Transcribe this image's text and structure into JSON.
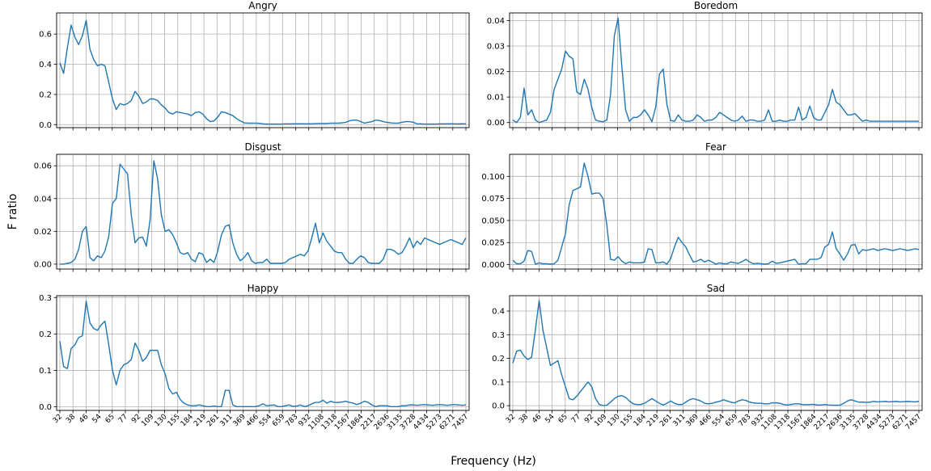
{
  "figure": {
    "ylabel": "F ratio",
    "xlabel": "Frequency (Hz)",
    "line_color": "#1f77b4",
    "grid_color": "#b0b0b0",
    "x_tick_labels": [
      "32",
      "38",
      "46",
      "54",
      "65",
      "77",
      "92",
      "109",
      "130",
      "155",
      "184",
      "219",
      "261",
      "311",
      "369",
      "466",
      "554",
      "659",
      "783",
      "932",
      "1108",
      "1318",
      "1567",
      "1864",
      "2217",
      "2636",
      "3135",
      "3728",
      "4434",
      "5273",
      "6271",
      "7457"
    ]
  },
  "chart_data": [
    {
      "type": "line",
      "title": "Angry",
      "ylim": [
        -0.02,
        0.74
      ],
      "yticks": [
        0.0,
        0.2,
        0.4,
        0.6
      ],
      "ytick_labels": [
        "0.0",
        "0.2",
        "0.4",
        "0.6"
      ],
      "grid": true,
      "values": [
        0.41,
        0.34,
        0.51,
        0.66,
        0.58,
        0.53,
        0.59,
        0.69,
        0.5,
        0.43,
        0.39,
        0.4,
        0.39,
        0.28,
        0.17,
        0.1,
        0.14,
        0.13,
        0.14,
        0.16,
        0.22,
        0.19,
        0.14,
        0.15,
        0.17,
        0.17,
        0.16,
        0.13,
        0.11,
        0.08,
        0.07,
        0.085,
        0.08,
        0.075,
        0.07,
        0.06,
        0.08,
        0.085,
        0.07,
        0.04,
        0.02,
        0.025,
        0.05,
        0.085,
        0.08,
        0.07,
        0.06,
        0.04,
        0.025,
        0.012,
        0.01,
        0.01,
        0.01,
        0.009,
        0.005,
        0.004,
        0.004,
        0.004,
        0.004,
        0.004,
        0.005,
        0.005,
        0.006,
        0.006,
        0.006,
        0.006,
        0.006,
        0.006,
        0.007,
        0.008,
        0.008,
        0.008,
        0.01,
        0.01,
        0.01,
        0.012,
        0.015,
        0.025,
        0.03,
        0.03,
        0.02,
        0.01,
        0.015,
        0.02,
        0.03,
        0.028,
        0.02,
        0.015,
        0.012,
        0.01,
        0.01,
        0.015,
        0.02,
        0.02,
        0.015,
        0.006,
        0.005,
        0.004,
        0.004,
        0.004,
        0.004,
        0.005,
        0.005,
        0.006,
        0.006,
        0.005,
        0.005,
        0.006,
        0.005
      ]
    },
    {
      "type": "line",
      "title": "Boredom",
      "ylim": [
        -0.002,
        0.043
      ],
      "yticks": [
        0.0,
        0.01,
        0.02,
        0.03,
        0.04
      ],
      "ytick_labels": [
        "0.00",
        "0.01",
        "0.02",
        "0.03",
        "0.04"
      ],
      "grid": true,
      "values": [
        0.001,
        0.0,
        0.002,
        0.0135,
        0.003,
        0.005,
        0.001,
        0.0,
        0.0005,
        0.001,
        0.004,
        0.013,
        0.017,
        0.021,
        0.028,
        0.026,
        0.025,
        0.012,
        0.011,
        0.017,
        0.013,
        0.006,
        0.001,
        0.0005,
        0.0003,
        0.001,
        0.011,
        0.034,
        0.041,
        0.022,
        0.005,
        0.0005,
        0.002,
        0.002,
        0.003,
        0.005,
        0.003,
        0.0003,
        0.006,
        0.019,
        0.021,
        0.007,
        0.0008,
        0.0005,
        0.003,
        0.001,
        0.0005,
        0.0005,
        0.001,
        0.003,
        0.002,
        0.0005,
        0.001,
        0.001,
        0.002,
        0.004,
        0.003,
        0.002,
        0.001,
        0.0005,
        0.001,
        0.0025,
        0.0005,
        0.001,
        0.001,
        0.0005,
        0.0005,
        0.001,
        0.005,
        0.0005,
        0.0005,
        0.001,
        0.0005,
        0.0005,
        0.001,
        0.001,
        0.006,
        0.001,
        0.002,
        0.0065,
        0.002,
        0.001,
        0.001,
        0.004,
        0.007,
        0.013,
        0.008,
        0.007,
        0.005,
        0.003,
        0.003,
        0.0035,
        0.002,
        0.0005,
        0.001,
        0.0005,
        0.0005,
        0.0005,
        0.0005,
        0.0005,
        0.0005,
        0.0005,
        0.0005,
        0.0005,
        0.0005,
        0.0005,
        0.0005,
        0.0005,
        0.0005
      ]
    },
    {
      "type": "line",
      "title": "Disgust",
      "ylim": [
        -0.003,
        0.067
      ],
      "yticks": [
        0.0,
        0.02,
        0.04,
        0.06
      ],
      "ytick_labels": [
        "0.00",
        "0.02",
        "0.04",
        "0.06"
      ],
      "grid": true,
      "values": [
        0.0,
        0.0,
        0.0005,
        0.001,
        0.003,
        0.009,
        0.02,
        0.023,
        0.004,
        0.002,
        0.005,
        0.004,
        0.008,
        0.017,
        0.037,
        0.04,
        0.061,
        0.058,
        0.055,
        0.03,
        0.013,
        0.016,
        0.0165,
        0.011,
        0.027,
        0.063,
        0.052,
        0.03,
        0.02,
        0.021,
        0.018,
        0.013,
        0.007,
        0.006,
        0.007,
        0.003,
        0.0015,
        0.007,
        0.006,
        0.001,
        0.003,
        0.001,
        0.008,
        0.018,
        0.023,
        0.024,
        0.013,
        0.006,
        0.002,
        0.004,
        0.007,
        0.002,
        0.0005,
        0.001,
        0.001,
        0.003,
        0.0005,
        0.0005,
        0.0005,
        0.0005,
        0.001,
        0.003,
        0.004,
        0.005,
        0.006,
        0.005,
        0.008,
        0.016,
        0.025,
        0.013,
        0.019,
        0.014,
        0.011,
        0.008,
        0.007,
        0.007,
        0.003,
        0.0005,
        0.0005,
        0.003,
        0.005,
        0.004,
        0.001,
        0.0005,
        0.0005,
        0.0005,
        0.003,
        0.009,
        0.009,
        0.008,
        0.006,
        0.007,
        0.011,
        0.016,
        0.01,
        0.014,
        0.012,
        0.016,
        0.015,
        0.014,
        0.013,
        0.012,
        0.013,
        0.014,
        0.015,
        0.014,
        0.013,
        0.012,
        0.016
      ]
    },
    {
      "type": "line",
      "title": "Fear",
      "ylim": [
        -0.005,
        0.125
      ],
      "yticks": [
        0.0,
        0.025,
        0.05,
        0.075,
        0.1
      ],
      "ytick_labels": [
        "0.000",
        "0.025",
        "0.050",
        "0.075",
        "0.100"
      ],
      "grid": true,
      "values": [
        0.005,
        0.001,
        0.001,
        0.004,
        0.016,
        0.015,
        0.0005,
        0.002,
        0.001,
        0.001,
        0.0005,
        0.001,
        0.005,
        0.02,
        0.035,
        0.068,
        0.084,
        0.086,
        0.088,
        0.115,
        0.1,
        0.08,
        0.081,
        0.081,
        0.075,
        0.045,
        0.006,
        0.005,
        0.009,
        0.004,
        0.001,
        0.003,
        0.002,
        0.002,
        0.002,
        0.003,
        0.018,
        0.017,
        0.002,
        0.002,
        0.003,
        0.0005,
        0.007,
        0.02,
        0.031,
        0.025,
        0.02,
        0.011,
        0.003,
        0.004,
        0.006,
        0.003,
        0.005,
        0.003,
        0.0005,
        0.002,
        0.001,
        0.001,
        0.003,
        0.002,
        0.0015,
        0.0035,
        0.006,
        0.003,
        0.001,
        0.0015,
        0.001,
        0.0005,
        0.001,
        0.004,
        0.0015,
        0.002,
        0.003,
        0.004,
        0.005,
        0.006,
        0.0005,
        0.001,
        0.001,
        0.006,
        0.006,
        0.006,
        0.008,
        0.02,
        0.023,
        0.037,
        0.018,
        0.012,
        0.005,
        0.012,
        0.022,
        0.023,
        0.012,
        0.017,
        0.016,
        0.017,
        0.018,
        0.016,
        0.017,
        0.018,
        0.017,
        0.016,
        0.017,
        0.018,
        0.017,
        0.016,
        0.017,
        0.018,
        0.017
      ]
    },
    {
      "type": "line",
      "title": "Happy",
      "ylim": [
        -0.01,
        0.305
      ],
      "yticks": [
        0.0,
        0.1,
        0.2,
        0.3
      ],
      "ytick_labels": [
        "0.0",
        "0.1",
        "0.2",
        "0.3"
      ],
      "grid": true,
      "values": [
        0.18,
        0.11,
        0.105,
        0.16,
        0.17,
        0.19,
        0.195,
        0.29,
        0.23,
        0.215,
        0.21,
        0.225,
        0.235,
        0.17,
        0.1,
        0.06,
        0.1,
        0.115,
        0.12,
        0.13,
        0.175,
        0.155,
        0.125,
        0.135,
        0.155,
        0.155,
        0.155,
        0.115,
        0.09,
        0.05,
        0.035,
        0.04,
        0.02,
        0.01,
        0.005,
        0.003,
        0.003,
        0.005,
        0.003,
        0.0005,
        0.0005,
        0.002,
        0.0005,
        0.0005,
        0.045,
        0.045,
        0.005,
        0.0005,
        0.0005,
        0.0005,
        0.0005,
        0.0005,
        0.0005,
        0.003,
        0.008,
        0.003,
        0.004,
        0.005,
        0.0005,
        0.0005,
        0.003,
        0.005,
        0.001,
        0.002,
        0.005,
        0.0005,
        0.003,
        0.008,
        0.012,
        0.012,
        0.018,
        0.01,
        0.015,
        0.012,
        0.012,
        0.013,
        0.015,
        0.012,
        0.01,
        0.006,
        0.01,
        0.015,
        0.012,
        0.005,
        0.0005,
        0.003,
        0.003,
        0.003,
        0.0005,
        0.0005,
        0.0005,
        0.003,
        0.003,
        0.005,
        0.005,
        0.004,
        0.005,
        0.006,
        0.005,
        0.004,
        0.005,
        0.006,
        0.005,
        0.004,
        0.005,
        0.006,
        0.005,
        0.004,
        0.005
      ]
    },
    {
      "type": "line",
      "title": "Sad",
      "ylim": [
        -0.02,
        0.465
      ],
      "yticks": [
        0.0,
        0.1,
        0.2,
        0.3,
        0.4
      ],
      "ytick_labels": [
        "0.0",
        "0.1",
        "0.2",
        "0.3",
        "0.4"
      ],
      "grid": true,
      "values": [
        0.18,
        0.23,
        0.235,
        0.21,
        0.195,
        0.205,
        0.32,
        0.445,
        0.32,
        0.245,
        0.17,
        0.18,
        0.19,
        0.13,
        0.08,
        0.03,
        0.025,
        0.04,
        0.06,
        0.08,
        0.1,
        0.08,
        0.03,
        0.005,
        0.0005,
        0.002,
        0.015,
        0.03,
        0.04,
        0.042,
        0.035,
        0.02,
        0.008,
        0.005,
        0.005,
        0.01,
        0.02,
        0.03,
        0.02,
        0.01,
        0.003,
        0.01,
        0.02,
        0.01,
        0.005,
        0.005,
        0.015,
        0.025,
        0.03,
        0.025,
        0.02,
        0.01,
        0.008,
        0.01,
        0.015,
        0.018,
        0.025,
        0.02,
        0.015,
        0.012,
        0.02,
        0.025,
        0.022,
        0.015,
        0.012,
        0.01,
        0.01,
        0.008,
        0.008,
        0.012,
        0.012,
        0.01,
        0.005,
        0.003,
        0.005,
        0.008,
        0.008,
        0.005,
        0.004,
        0.005,
        0.006,
        0.003,
        0.003,
        0.005,
        0.003,
        0.002,
        0.002,
        0.002,
        0.01,
        0.02,
        0.025,
        0.02,
        0.015,
        0.015,
        0.014,
        0.015,
        0.018,
        0.016,
        0.017,
        0.018,
        0.016,
        0.017,
        0.018,
        0.016,
        0.017,
        0.018,
        0.017,
        0.016,
        0.018
      ]
    }
  ]
}
